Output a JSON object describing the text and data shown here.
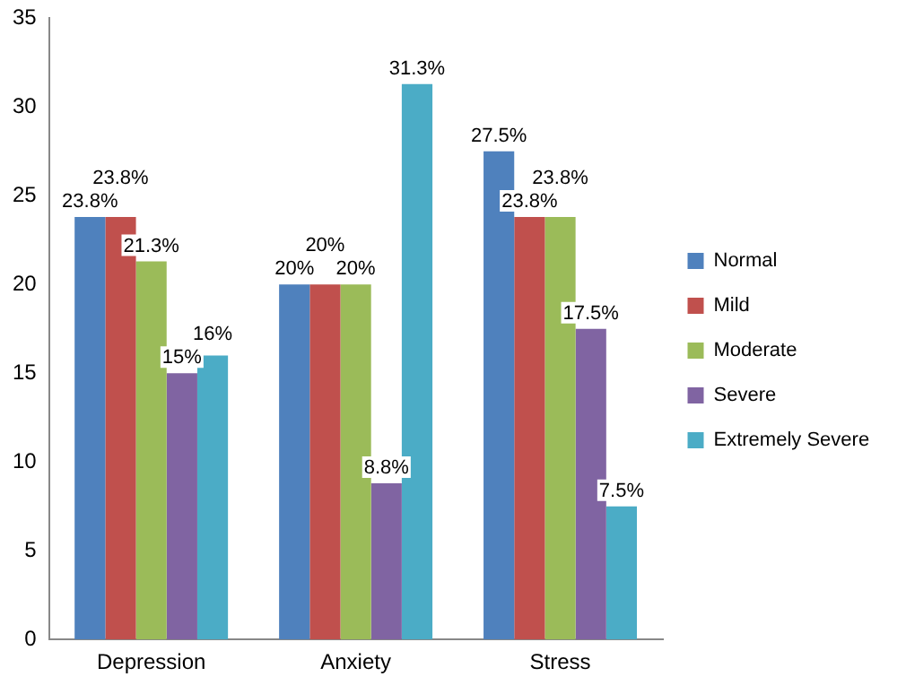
{
  "chart_data": {
    "type": "bar",
    "categories": [
      "Depression",
      "Anxiety",
      "Stress"
    ],
    "series": [
      {
        "name": "Normal",
        "color": "#4f81bd",
        "values": [
          23.8,
          20,
          27.5
        ],
        "value_labels": [
          "23.8%",
          "20%",
          "27.5%"
        ]
      },
      {
        "name": "Mild",
        "color": "#c0504d",
        "values": [
          23.8,
          20,
          23.8
        ],
        "value_labels": [
          "23.8%",
          "20%",
          "23.8%"
        ]
      },
      {
        "name": "Moderate",
        "color": "#9bbb59",
        "values": [
          21.3,
          20,
          23.8
        ],
        "value_labels": [
          "21.3%",
          "20%",
          "23.8%"
        ]
      },
      {
        "name": "Severe",
        "color": "#8064a2",
        "values": [
          15,
          8.8,
          17.5
        ],
        "value_labels": [
          "15%",
          "8.8%",
          "17.5%"
        ]
      },
      {
        "name": "Extremely Severe",
        "color": "#4bacc6",
        "values": [
          16,
          31.3,
          7.5
        ],
        "value_labels": [
          "16%",
          "31.3%",
          "7.5%"
        ]
      }
    ],
    "ylim": [
      0,
      35
    ],
    "yticks": [
      0,
      5,
      10,
      15,
      20,
      25,
      30,
      35
    ],
    "grid": false,
    "legend": "right"
  }
}
